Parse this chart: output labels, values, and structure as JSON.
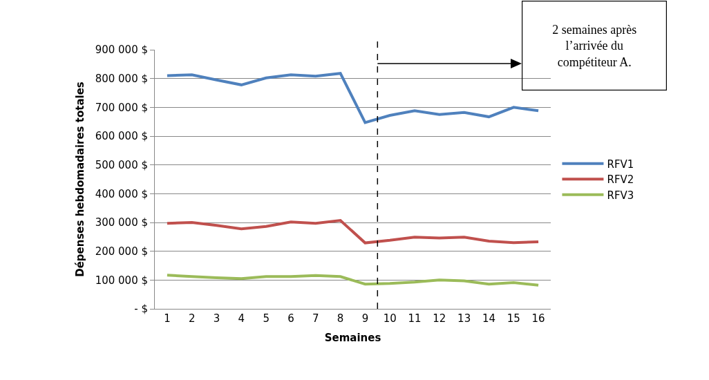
{
  "chart_data": {
    "type": "line",
    "xlabel": "Semaines",
    "ylabel": "Dépenses hebdomadaires totales",
    "x": [
      1,
      2,
      3,
      4,
      5,
      6,
      7,
      8,
      9,
      10,
      11,
      12,
      13,
      14,
      15,
      16
    ],
    "xlim": [
      0.5,
      16.5
    ],
    "xticks": [
      1,
      2,
      3,
      4,
      5,
      6,
      7,
      8,
      9,
      10,
      11,
      12,
      13,
      14,
      15,
      16
    ],
    "ylim": [
      0,
      900000
    ],
    "yticks": [
      {
        "value": 0,
        "label": "- $"
      },
      {
        "value": 100000,
        "label": "100 000 $"
      },
      {
        "value": 200000,
        "label": "200 000 $"
      },
      {
        "value": 300000,
        "label": "300 000 $"
      },
      {
        "value": 400000,
        "label": "400 000 $"
      },
      {
        "value": 500000,
        "label": "500 000 $"
      },
      {
        "value": 600000,
        "label": "600 000 $"
      },
      {
        "value": 700000,
        "label": "700 000 $"
      },
      {
        "value": 800000,
        "label": "800 000 $"
      },
      {
        "value": 900000,
        "label": "900 000 $"
      }
    ],
    "series": [
      {
        "name": "RFV1",
        "color": "#4f81bd",
        "values": [
          810000,
          813000,
          795000,
          778000,
          802000,
          813000,
          808000,
          818000,
          647000,
          672000,
          688000,
          675000,
          682000,
          667000,
          700000,
          688000
        ]
      },
      {
        "name": "RFV2",
        "color": "#c0504d",
        "values": [
          297000,
          300000,
          290000,
          278000,
          286000,
          302000,
          297000,
          307000,
          229000,
          238000,
          249000,
          246000,
          249000,
          235000,
          230000,
          233000
        ]
      },
      {
        "name": "RFV3",
        "color": "#9bbb59",
        "values": [
          117000,
          112000,
          108000,
          105000,
          112000,
          112000,
          116000,
          112000,
          86000,
          88000,
          93000,
          100000,
          97000,
          86000,
          91000,
          82000
        ]
      }
    ],
    "ref_lines": [
      {
        "axis": "x",
        "value": 9.5,
        "color": "#000000",
        "line_style": "dashed"
      }
    ],
    "annotations": [
      "2 semaines après l’arrivée du compétiteur A."
    ],
    "grid": "y",
    "legend": "right",
    "marker": "none",
    "line_style": "solid"
  }
}
